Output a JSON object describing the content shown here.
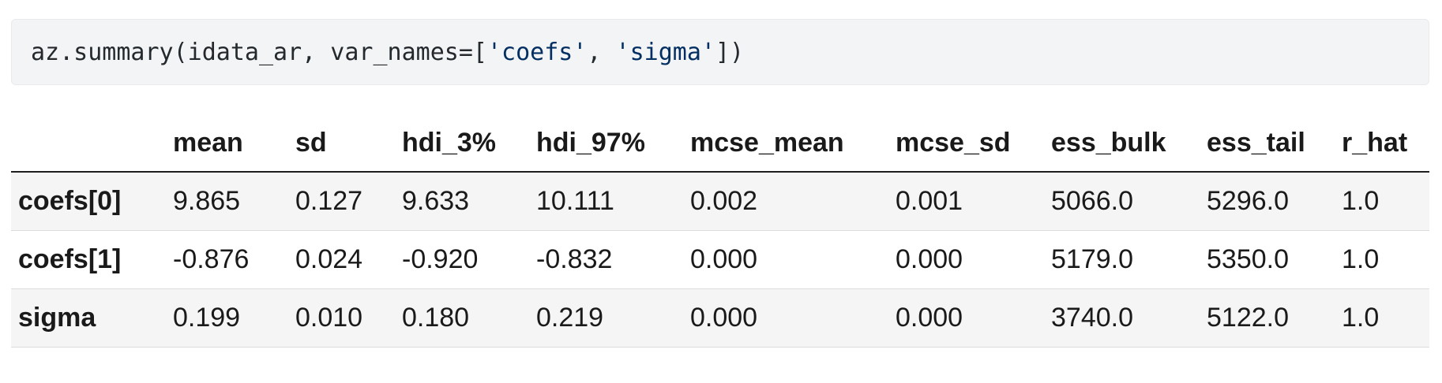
{
  "code_cell": {
    "prefix": "az.summary(idata_ar, var_names=[",
    "str1": "'coefs'",
    "sep": ", ",
    "str2": "'sigma'",
    "suffix": "])"
  },
  "table": {
    "columns": [
      "mean",
      "sd",
      "hdi_3%",
      "hdi_97%",
      "mcse_mean",
      "mcse_sd",
      "ess_bulk",
      "ess_tail",
      "r_hat"
    ],
    "rows": [
      {
        "index": "coefs[0]",
        "values": [
          "9.865",
          "0.127",
          "9.633",
          "10.111",
          "0.002",
          "0.001",
          "5066.0",
          "5296.0",
          "1.0"
        ]
      },
      {
        "index": "coefs[1]",
        "values": [
          "-0.876",
          "0.024",
          "-0.920",
          "-0.832",
          "0.000",
          "0.000",
          "5179.0",
          "5350.0",
          "1.0"
        ]
      },
      {
        "index": "sigma",
        "values": [
          "0.199",
          "0.010",
          "0.180",
          "0.219",
          "0.000",
          "0.000",
          "3740.0",
          "5122.0",
          "1.0"
        ]
      }
    ]
  }
}
